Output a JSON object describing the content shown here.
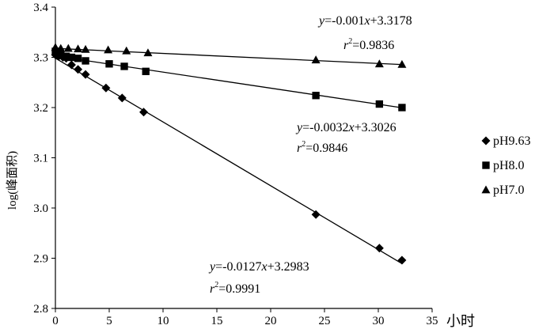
{
  "chart_data": {
    "type": "scatter",
    "title": "",
    "xlabel": "小时",
    "ylabel": "log(峰面积)",
    "xlim": [
      0,
      35
    ],
    "ylim": [
      2.8,
      3.4
    ],
    "x_ticks": [
      "0",
      "5",
      "10",
      "15",
      "20",
      "25",
      "30",
      "35"
    ],
    "y_ticks": [
      "2.8",
      "2.9",
      "3.0",
      "3.1",
      "3.2",
      "3.3",
      "3.4"
    ],
    "legend_position": "right",
    "series": [
      {
        "name": "pH9.63",
        "marker": "diamond",
        "color": "#000000",
        "points": [
          {
            "x": 0,
            "y": 3.305
          },
          {
            "x": 0.3,
            "y": 3.302
          },
          {
            "x": 0.7,
            "y": 3.3
          },
          {
            "x": 1,
            "y": 3.298
          },
          {
            "x": 1.5,
            "y": 3.285
          },
          {
            "x": 2.1,
            "y": 3.276
          },
          {
            "x": 2.8,
            "y": 3.266
          },
          {
            "x": 4.7,
            "y": 3.239
          },
          {
            "x": 6.2,
            "y": 3.219
          },
          {
            "x": 8.2,
            "y": 3.191
          },
          {
            "x": 24.2,
            "y": 2.987
          },
          {
            "x": 30.1,
            "y": 2.92
          },
          {
            "x": 32.2,
            "y": 2.896
          }
        ],
        "fit": {
          "slope": -0.0127,
          "intercept": 3.2983
        },
        "equation_y": "y",
        "equation_rest": "=-0.0127",
        "equation_x": "x",
        "equation_tail": "+3.2983",
        "r2_r": "r",
        "r2_sup": "2",
        "r2_value": "=0.9991"
      },
      {
        "name": "pH8.0",
        "marker": "square",
        "color": "#000000",
        "points": [
          {
            "x": 0,
            "y": 3.312
          },
          {
            "x": 0.5,
            "y": 3.306
          },
          {
            "x": 1,
            "y": 3.302
          },
          {
            "x": 1.5,
            "y": 3.3
          },
          {
            "x": 2.1,
            "y": 3.298
          },
          {
            "x": 2.8,
            "y": 3.293
          },
          {
            "x": 5.0,
            "y": 3.287
          },
          {
            "x": 6.4,
            "y": 3.282
          },
          {
            "x": 8.4,
            "y": 3.272
          },
          {
            "x": 24.2,
            "y": 3.224
          },
          {
            "x": 30.1,
            "y": 3.207
          },
          {
            "x": 32.2,
            "y": 3.2
          }
        ],
        "fit": {
          "slope": -0.0032,
          "intercept": 3.3026
        },
        "equation_y": "y",
        "equation_rest": "=-0.0032",
        "equation_x": "x",
        "equation_tail": "+3.3026",
        "r2_r": "r",
        "r2_sup": "2",
        "r2_value": "=0.9846"
      },
      {
        "name": "pH7.0",
        "marker": "triangle",
        "color": "#000000",
        "points": [
          {
            "x": 0,
            "y": 3.32
          },
          {
            "x": 0.5,
            "y": 3.318
          },
          {
            "x": 1.2,
            "y": 3.318
          },
          {
            "x": 2.1,
            "y": 3.317
          },
          {
            "x": 2.8,
            "y": 3.316
          },
          {
            "x": 4.9,
            "y": 3.315
          },
          {
            "x": 6.6,
            "y": 3.313
          },
          {
            "x": 8.6,
            "y": 3.309
          },
          {
            "x": 24.2,
            "y": 3.295
          },
          {
            "x": 30.1,
            "y": 3.287
          },
          {
            "x": 32.2,
            "y": 3.286
          }
        ],
        "fit": {
          "slope": -0.001,
          "intercept": 3.3178
        },
        "equation_y": "y",
        "equation_rest": "=-0.001",
        "equation_x": "x",
        "equation_tail": "+3.3178",
        "r2_r": "r",
        "r2_sup": "2",
        "r2_value": "=0.9836"
      }
    ]
  }
}
